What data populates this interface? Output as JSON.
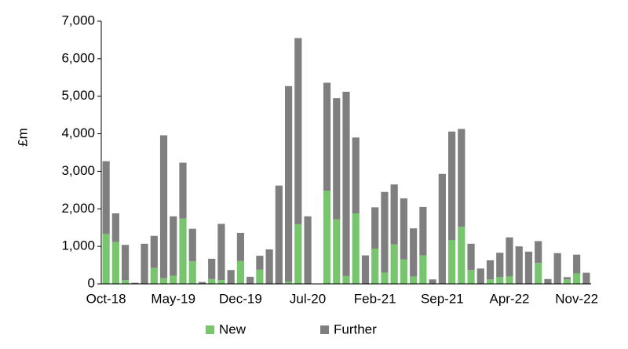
{
  "chart_data": {
    "type": "stacked_bar",
    "ylabel": "£m",
    "categories": [
      "Oct-18",
      null,
      null,
      null,
      null,
      null,
      null,
      "May-19",
      null,
      null,
      null,
      null,
      null,
      null,
      "Dec-19",
      null,
      null,
      null,
      null,
      null,
      null,
      "Jul-20",
      null,
      null,
      null,
      null,
      null,
      null,
      "Feb-21",
      null,
      null,
      null,
      null,
      null,
      null,
      "Sep-21",
      null,
      null,
      null,
      null,
      null,
      null,
      "Apr-22",
      null,
      null,
      null,
      null,
      null,
      null,
      "Nov-22",
      null
    ],
    "series": [
      {
        "name": "New",
        "color": "#77c66e",
        "values": [
          1330,
          1120,
          100,
          0,
          0,
          430,
          150,
          220,
          1740,
          600,
          0,
          130,
          100,
          0,
          610,
          0,
          380,
          0,
          0,
          60,
          1590,
          0,
          0,
          2480,
          1720,
          210,
          1880,
          0,
          940,
          300,
          1050,
          650,
          200,
          760,
          0,
          0,
          1170,
          1520,
          370,
          0,
          120,
          180,
          200,
          0,
          0,
          560,
          0,
          0,
          120,
          280,
          0
        ]
      },
      {
        "name": "Further",
        "color": "#7f7f7f",
        "values": [
          1940,
          760,
          940,
          30,
          1070,
          850,
          3810,
          1580,
          1490,
          870,
          50,
          540,
          1500,
          370,
          750,
          190,
          370,
          920,
          2620,
          5210,
          4960,
          1800,
          0,
          2880,
          3230,
          4910,
          2020,
          760,
          1100,
          2150,
          1600,
          1630,
          1280,
          1290,
          120,
          2930,
          2890,
          2610,
          700,
          410,
          510,
          650,
          1040,
          1000,
          860,
          580,
          130,
          820,
          60,
          500,
          300
        ]
      }
    ],
    "ylim": [
      0,
      7000
    ],
    "yticks": [
      0,
      {
        "value": 1000,
        "label": "1,000"
      },
      {
        "value": 2000,
        "label": "2,000"
      },
      {
        "value": 3000,
        "label": "3,000"
      },
      {
        "value": 4000,
        "label": "4,000"
      },
      {
        "value": 5000,
        "label": "5,000"
      },
      {
        "value": 6000,
        "label": "6,000"
      },
      {
        "value": 7000,
        "label": "7,000"
      }
    ],
    "legend": "bottom"
  }
}
